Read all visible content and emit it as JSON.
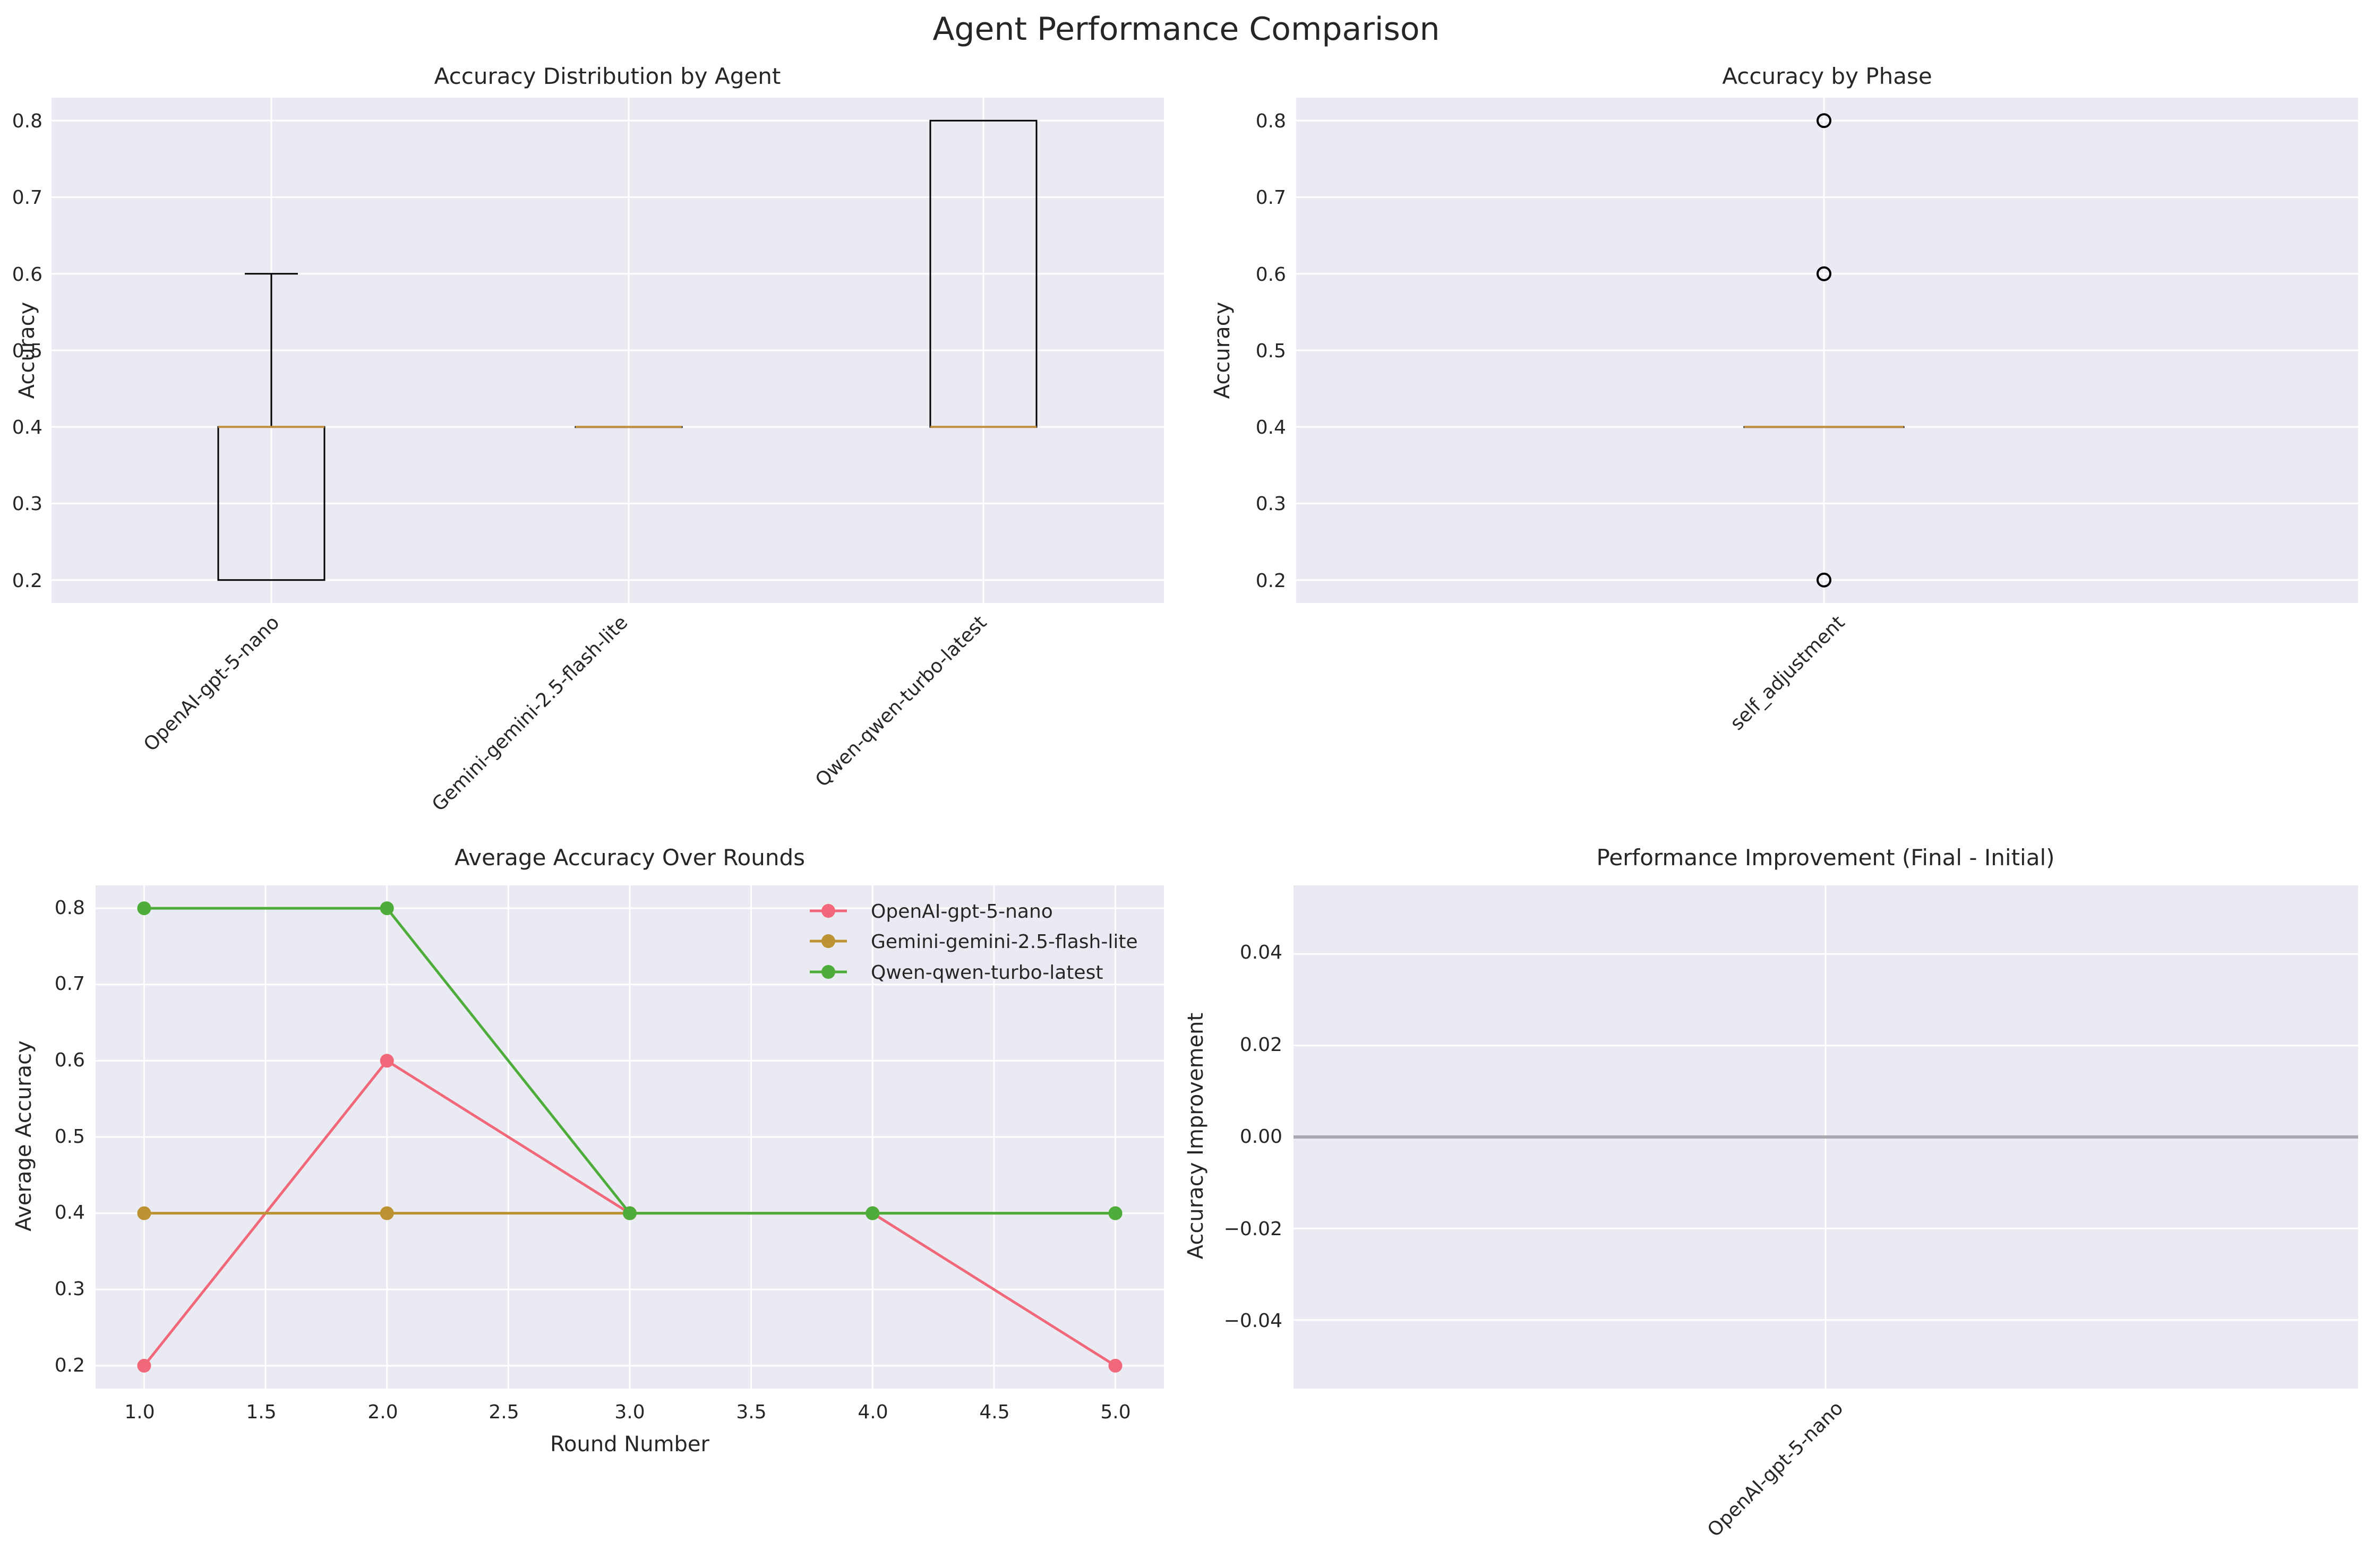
{
  "figure": {
    "title": "Agent Performance Comparison",
    "colors": {
      "panel_bg": "#EAEAF2",
      "grid": "#FFFFFF",
      "box_edge": "#000000",
      "median": "#C09040",
      "zero_line": "#A9A9B0",
      "openai": "#F0687A",
      "gemini": "#BC9232",
      "qwen": "#4EAD3A"
    }
  },
  "chart_data": [
    {
      "type": "box",
      "title": "Accuracy Distribution by Agent",
      "xlabel": "",
      "ylabel": "Accuracy",
      "ylim": [
        0.17,
        0.83
      ],
      "yticks": [
        "0.2",
        "0.3",
        "0.4",
        "0.5",
        "0.6",
        "0.7",
        "0.8"
      ],
      "grid": true,
      "categories": [
        "OpenAI-gpt-5-nano",
        "Gemini-gemini-2.5-flash-lite",
        "Qwen-qwen-turbo-latest"
      ],
      "boxes": [
        {
          "q1": 0.2,
          "median": 0.4,
          "q3": 0.4,
          "whisker_low": 0.2,
          "whisker_high": 0.6,
          "outliers": []
        },
        {
          "q1": 0.4,
          "median": 0.4,
          "q3": 0.4,
          "whisker_low": 0.4,
          "whisker_high": 0.4,
          "outliers": []
        },
        {
          "q1": 0.4,
          "median": 0.4,
          "q3": 0.8,
          "whisker_low": 0.4,
          "whisker_high": 0.8,
          "outliers": []
        }
      ]
    },
    {
      "type": "box",
      "title": "Accuracy by Phase",
      "xlabel": "",
      "ylabel": "Accuracy",
      "ylim": [
        0.17,
        0.83
      ],
      "yticks": [
        "0.2",
        "0.3",
        "0.4",
        "0.5",
        "0.6",
        "0.7",
        "0.8"
      ],
      "grid": true,
      "categories": [
        "self_adjustment"
      ],
      "boxes": [
        {
          "q1": 0.4,
          "median": 0.4,
          "q3": 0.4,
          "whisker_low": 0.4,
          "whisker_high": 0.4,
          "outliers": [
            0.8,
            0.6,
            0.2
          ]
        }
      ]
    },
    {
      "type": "line",
      "title": "Average Accuracy Over Rounds",
      "xlabel": "Round Number",
      "ylabel": "Average Accuracy",
      "xlim": [
        0.8,
        5.2
      ],
      "ylim": [
        0.17,
        0.83
      ],
      "xticks": [
        "1.0",
        "1.5",
        "2.0",
        "2.5",
        "3.0",
        "3.5",
        "4.0",
        "4.5",
        "5.0"
      ],
      "yticks": [
        "0.2",
        "0.3",
        "0.4",
        "0.5",
        "0.6",
        "0.7",
        "0.8"
      ],
      "grid": true,
      "legend": "top-right",
      "x": [
        1,
        2,
        3,
        4,
        5
      ],
      "series": [
        {
          "name": "OpenAI-gpt-5-nano",
          "color": "#F0687A",
          "values": [
            0.2,
            0.6,
            0.4,
            0.4,
            0.2
          ]
        },
        {
          "name": "Gemini-gemini-2.5-flash-lite",
          "color": "#BC9232",
          "values": [
            0.4,
            0.4,
            0.4,
            0.4,
            0.4
          ]
        },
        {
          "name": "Qwen-qwen-turbo-latest",
          "color": "#4EAD3A",
          "values": [
            0.8,
            0.8,
            0.4,
            0.4,
            0.4
          ]
        }
      ]
    },
    {
      "type": "bar",
      "title": "Performance Improvement (Final - Initial)",
      "xlabel": "",
      "ylabel": "Accuracy Improvement",
      "ylim": [
        -0.055,
        0.055
      ],
      "yticks": [
        "0.04",
        "0.02",
        "0.00",
        "−0.02",
        "−0.04"
      ],
      "grid": true,
      "categories": [
        "OpenAI-gpt-5-nano"
      ],
      "values": [
        0.0
      ],
      "reference_line": 0.0
    }
  ]
}
